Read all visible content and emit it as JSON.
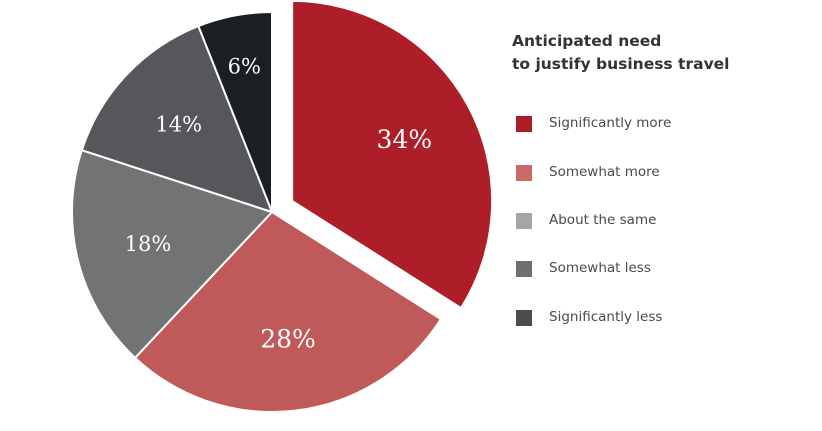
{
  "chart_data": {
    "type": "pie",
    "title": "Anticipated need to justify business travel",
    "title_lines": [
      "Anticipated need",
      "to justify business travel"
    ],
    "categories": [
      "Significantly more",
      "Somewhat more",
      "About the same",
      "Somewhat less",
      "Significantly less"
    ],
    "values": [
      34,
      28,
      18,
      14,
      6
    ],
    "value_labels": [
      "34%",
      "28%",
      "18%",
      "14%",
      "6%"
    ],
    "colors": [
      "#ae1e28",
      "#c05a5a",
      "#727474",
      "#55575a",
      "#1b1f23"
    ],
    "legend_colors": [
      "#ae1e28",
      "#c96a6a",
      "#a3a5a7",
      "#6d6f71",
      "#4a4c4f"
    ],
    "legend_position": "right",
    "exploded_slice": "Significantly more"
  }
}
